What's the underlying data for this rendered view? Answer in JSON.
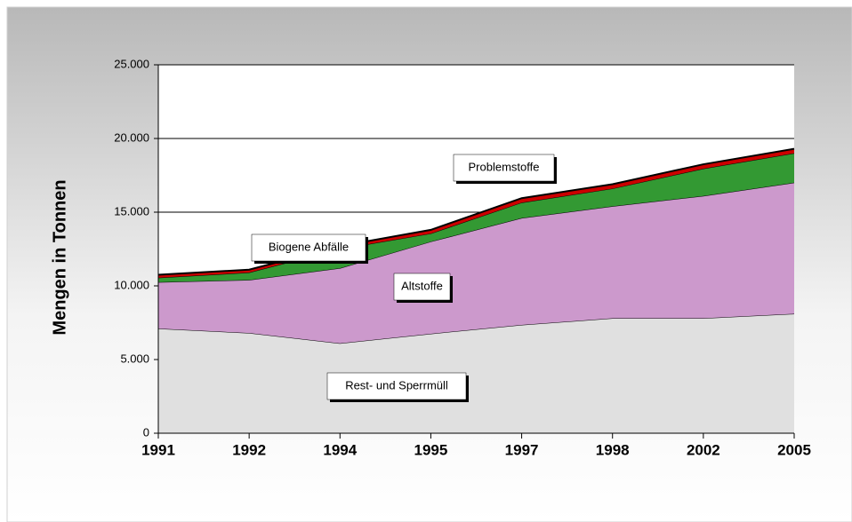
{
  "chart_data": {
    "type": "stacked-area",
    "ylabel": "Mengen in Tonnen",
    "categories": [
      "1991",
      "1992",
      "1994",
      "1995",
      "1997",
      "1998",
      "2002",
      "2005"
    ],
    "series": [
      {
        "name": "Rest- und Sperrmüll",
        "color": "#e0e0e0",
        "values": [
          7100,
          6800,
          6100,
          6750,
          7350,
          7800,
          7800,
          8100
        ]
      },
      {
        "name": "Altstoffe",
        "color": "#cc99cc",
        "values": [
          3150,
          3600,
          5100,
          6250,
          7250,
          7600,
          8300,
          8900
        ]
      },
      {
        "name": "Biogene Abfälle",
        "color": "#339933",
        "values": [
          300,
          500,
          1300,
          550,
          1050,
          1200,
          1850,
          2000
        ]
      },
      {
        "name": "Problemstoffe",
        "color": "#cc0000",
        "values": [
          200,
          200,
          200,
          250,
          300,
          300,
          300,
          300
        ]
      }
    ],
    "ylim": [
      0,
      25000
    ],
    "yticks": [
      0,
      {
        "value": 5000,
        "label": "5.000"
      },
      {
        "value": 10000,
        "label": "10.000"
      },
      {
        "value": 15000,
        "label": "15.000"
      },
      {
        "value": 20000,
        "label": "20.000"
      },
      {
        "value": 25000,
        "label": "25.000"
      }
    ],
    "grid": true
  }
}
